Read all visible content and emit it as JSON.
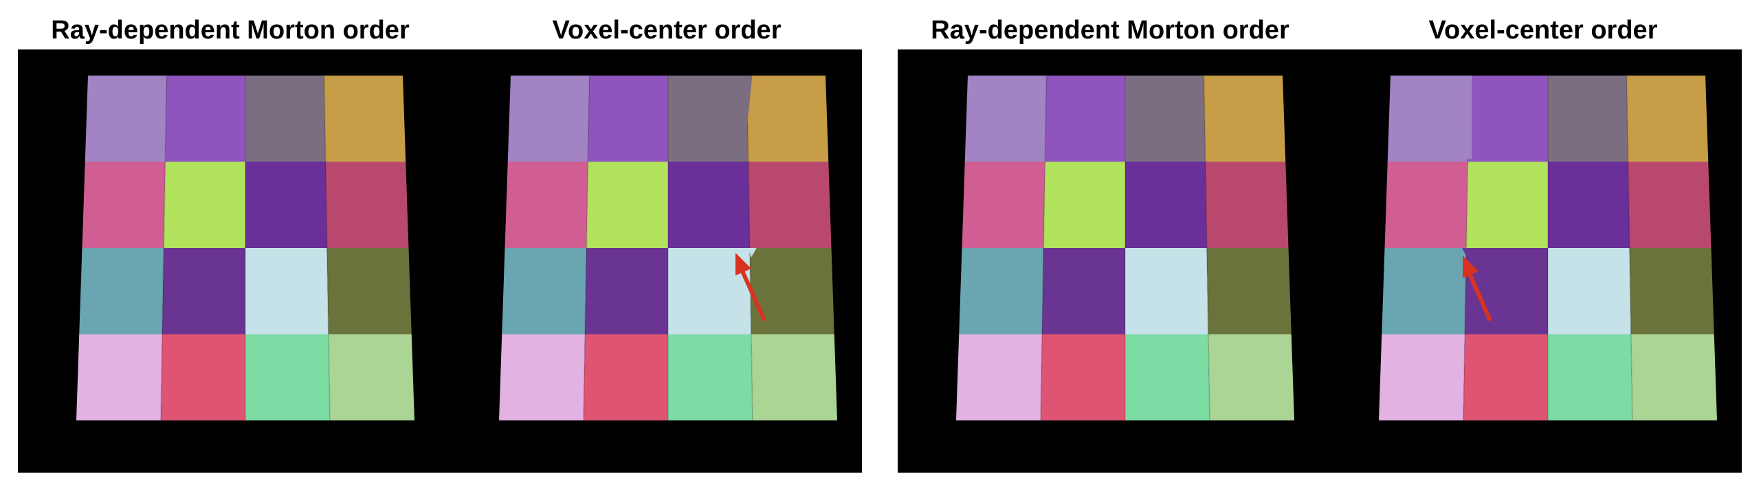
{
  "colors": {
    "background": "#000000",
    "arrow": "#d9331f",
    "tiles": [
      [
        "#a283c4",
        "#8f55bd",
        "#7b6e80",
        "#c89d48"
      ],
      [
        "#d05e93",
        "#b1e35d",
        "#6a2f98",
        "#b9486f"
      ],
      [
        "#6aa5b2",
        "#6a3592",
        "#c5e2e9",
        "#6b733c"
      ],
      [
        "#e1b2e2",
        "#e05473",
        "#7ddca3",
        "#aad594"
      ]
    ]
  },
  "figures": [
    {
      "left_title": "Ray-dependent Morton order",
      "right_title": "Voxel-center order",
      "artifact_note": "arrow-on-right-grid"
    },
    {
      "left_title": "Ray-dependent Morton order",
      "right_title": "Voxel-center order",
      "artifact_note": "arrow-on-right-grid"
    }
  ]
}
